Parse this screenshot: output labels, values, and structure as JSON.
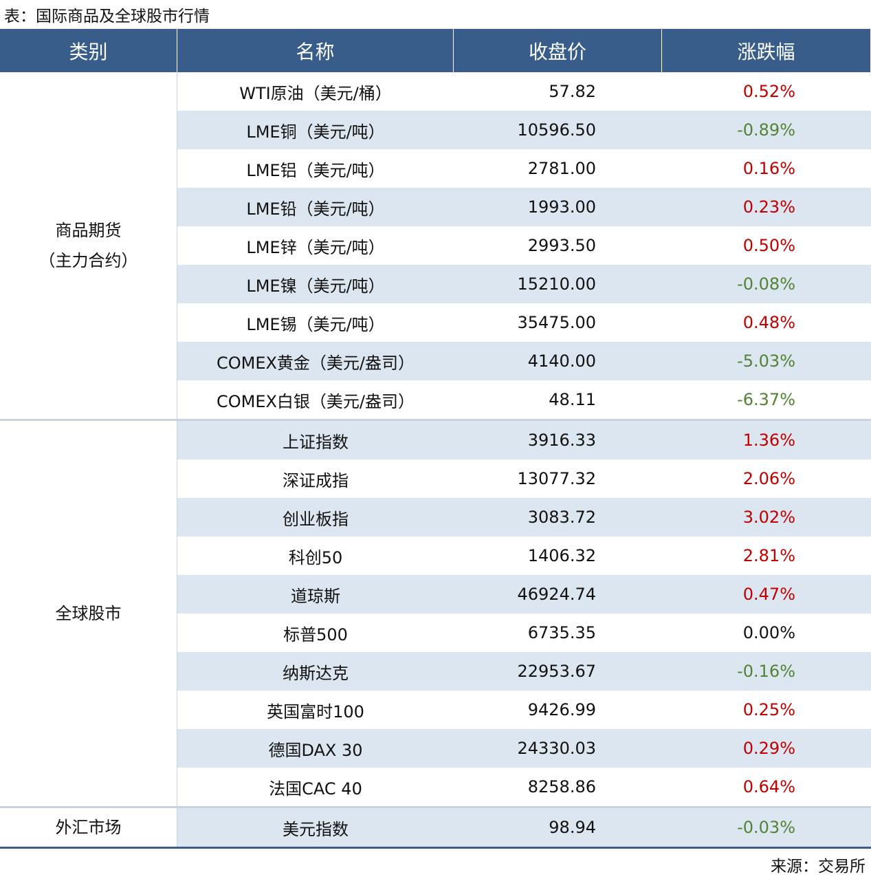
{
  "title": "表：国际商品及全球股市行情",
  "table": {
    "header": [
      "类别",
      "名称",
      "收盘价",
      "涨跌幅"
    ],
    "groups": [
      {
        "category": [
          "商品期货",
          "（主力合约）"
        ],
        "rows": [
          [
            "WTI原油（美元/桶）",
            "57.82",
            "0.52%"
          ],
          [
            "LME铜（美元/吨）",
            "10596.50",
            "-0.89%"
          ],
          [
            "LME铝（美元/吨）",
            "2781.00",
            "0.16%"
          ],
          [
            "LME铅（美元/吨）",
            "1993.00",
            "0.23%"
          ],
          [
            "LME锌（美元/吨）",
            "2993.50",
            "0.50%"
          ],
          [
            "LME镍（美元/吨）",
            "15210.00",
            "-0.08%"
          ],
          [
            "LME锡（美元/吨）",
            "35475.00",
            "0.48%"
          ],
          [
            "COMEX黄金（美元/盎司）",
            "4140.00",
            "-5.03%"
          ],
          [
            "COMEX白银（美元/盎司）",
            "48.11",
            "-6.37%"
          ]
        ]
      },
      {
        "category": [
          "全球股市"
        ],
        "rows": [
          [
            "上证指数",
            "3916.33",
            "1.36%"
          ],
          [
            "深证成指",
            "13077.32",
            "2.06%"
          ],
          [
            "创业板指",
            "3083.72",
            "3.02%"
          ],
          [
            "科创50",
            "1406.32",
            "2.81%"
          ],
          [
            "道琼斯",
            "46924.74",
            "0.47%"
          ],
          [
            "标普500",
            "6735.35",
            "0.00%"
          ],
          [
            "纳斯达克",
            "22953.67",
            "-0.16%"
          ],
          [
            "英国富时100",
            "9426.99",
            "0.25%"
          ],
          [
            "德国DAX 30",
            "24330.03",
            "0.29%"
          ],
          [
            "法国CAC 40",
            "8258.86",
            "0.64%"
          ]
        ]
      },
      {
        "category": [
          "外汇市场"
        ],
        "rows": [
          [
            "美元指数",
            "98.94",
            "-0.03%"
          ]
        ]
      }
    ]
  },
  "source": "来源：交易所"
}
